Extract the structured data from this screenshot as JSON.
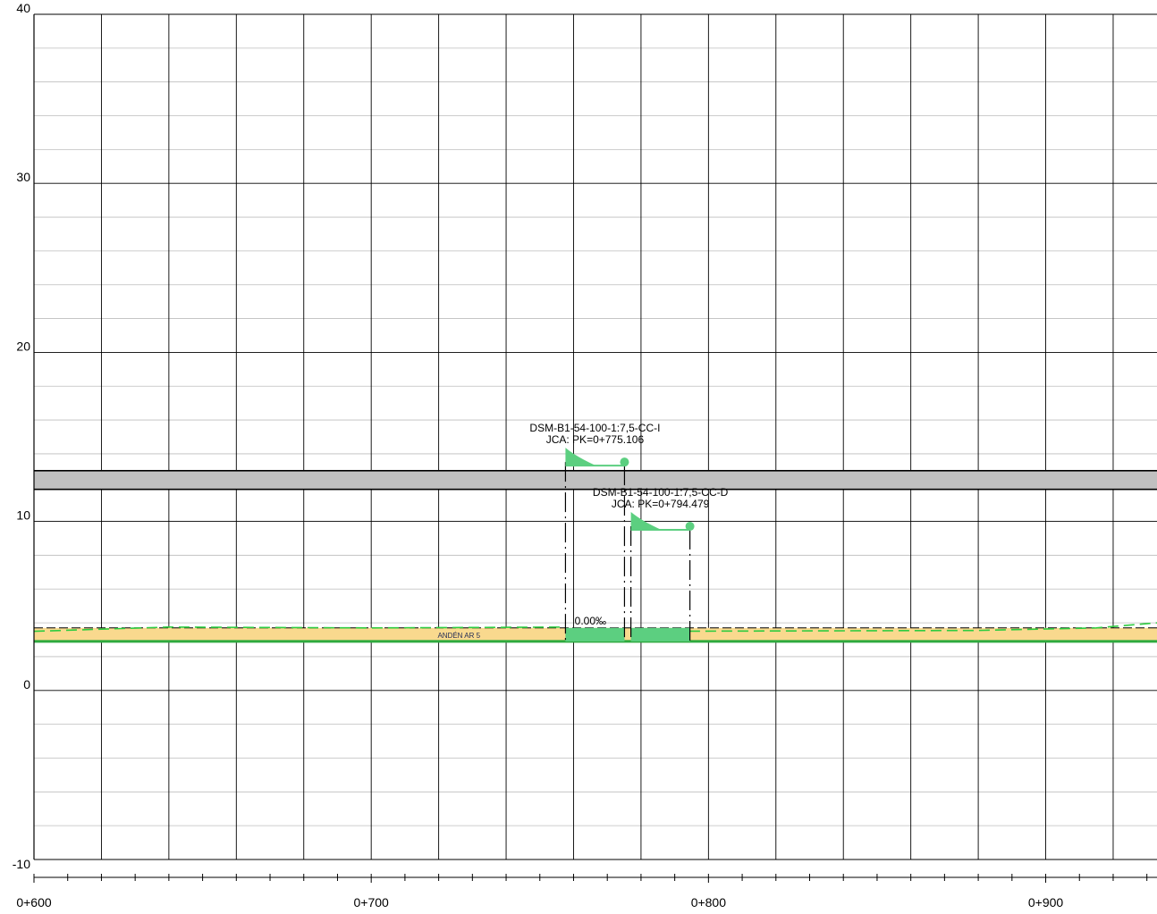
{
  "chart_data": {
    "type": "profile",
    "y_axis": {
      "ticks": [
        40,
        30,
        20,
        10,
        0,
        -10
      ],
      "ylim": [
        -10,
        40
      ]
    },
    "x_axis": {
      "ticks": [
        "0+600",
        "0+700",
        "0+800",
        "0+900"
      ],
      "xlim": [
        600,
        933
      ]
    },
    "grid": true,
    "platform": {
      "label": "ANDÉN AR 5",
      "elev_top": 3.7,
      "elev_bottom": 2.9,
      "color": "#f9d98e"
    },
    "structure_band": {
      "elev_top": 13.0,
      "elev_bottom": 11.9,
      "color": "#c0c0c0"
    },
    "slope_label": "0.00‰",
    "switches": [
      {
        "name": "DSM-B1-54-100-1:7,5-CC-I",
        "pk_label": "JCA: PK=0+775.106",
        "start": 757.6,
        "end": 775.1,
        "flag_elev": 13.3
      },
      {
        "name": "DSM-B1-54-100-1:7,5-CC-D",
        "pk_label": "JCA: PK=0+794.479",
        "start": 777.0,
        "end": 794.5,
        "flag_elev": 9.5
      }
    ],
    "colors": {
      "accent": "#5ccf80",
      "track": "#2eaa3e",
      "grid": "#000000",
      "minor_grid": "#bdbdbd"
    }
  }
}
